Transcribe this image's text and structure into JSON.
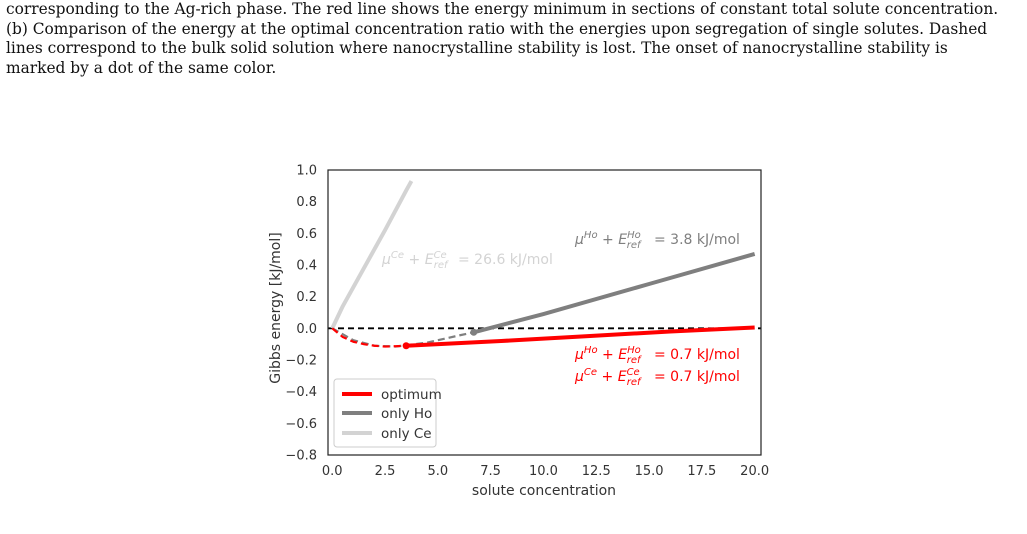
{
  "caption": {
    "lines": [
      "corresponding to the Ag-rich phase. The red line shows the energy minimum in sections of constant total solute concentration.",
      "(b) Comparison of the energy at the optimal concentration ratio with the energies upon segregation of single solutes. Dashed",
      "lines correspond to the bulk solid solution where nanocrystalline stability is lost.  The onset of nanocrystalline stability is",
      "marked by a dot of the same color."
    ]
  },
  "figure": {
    "annotations": {
      "ce_gray": "= 26.6 kJ/mol",
      "ho_gray": "= 3.8 kJ/mol",
      "ho_red": "= 0.7 kJ/mol",
      "ce_red": "= 0.7 kJ/mol"
    }
  },
  "chart_data": {
    "type": "line",
    "xlabel": "solute concentration",
    "ylabel": "Gibbs energy [kJ/mol]",
    "xlim": [
      -0.2,
      20.3
    ],
    "ylim": [
      -0.8,
      1.0
    ],
    "x_ticks": [
      "0.0",
      "2.5",
      "5.0",
      "7.5",
      "10.0",
      "12.5",
      "15.0",
      "17.5",
      "20.0"
    ],
    "y_ticks": [
      "1.0",
      "0.8",
      "0.6",
      "0.4",
      "0.2",
      "0.0",
      "−0.2",
      "−0.4",
      "−0.6",
      "−0.8"
    ],
    "grid": false,
    "legend_position": "lower-left",
    "reference_line": {
      "y": 0.0,
      "style": "dashed",
      "color": "#000000"
    },
    "series": [
      {
        "name": "optimum",
        "color": "#ff0000",
        "segments": [
          {
            "style": "dashed",
            "x": [
              0,
              0.5,
              1.0,
              1.5,
              2.0,
              2.5,
              3.0,
              3.5
            ],
            "y": [
              0,
              -0.055,
              -0.085,
              -0.1,
              -0.11,
              -0.115,
              -0.113,
              -0.11
            ]
          },
          {
            "style": "solid",
            "x": [
              3.5,
              8,
              12,
              16,
              20
            ],
            "y": [
              -0.11,
              -0.08,
              -0.05,
              -0.02,
              0.005
            ]
          }
        ],
        "onset_marker": {
          "x": 3.5,
          "y": -0.11
        }
      },
      {
        "name": "only Ho",
        "color": "#7f7f7f",
        "segments": [
          {
            "style": "dashed",
            "x": [
              0,
              1.0,
              2.0,
              3.0,
              4.5,
              6.0,
              6.7
            ],
            "y": [
              0,
              -0.075,
              -0.11,
              -0.115,
              -0.09,
              -0.045,
              -0.025
            ]
          },
          {
            "style": "solid",
            "x": [
              6.7,
              10,
              15,
              20
            ],
            "y": [
              -0.025,
              0.09,
              0.28,
              0.47
            ]
          }
        ],
        "onset_marker": {
          "x": 6.7,
          "y": -0.025
        }
      },
      {
        "name": "only Ce",
        "color": "#d3d3d3",
        "segments": [
          {
            "style": "solid",
            "x": [
              0,
              0.5,
              1.5,
              2.5,
              3.5,
              3.75
            ],
            "y": [
              0,
              0.14,
              0.38,
              0.62,
              0.87,
              0.93
            ]
          }
        ]
      }
    ]
  }
}
